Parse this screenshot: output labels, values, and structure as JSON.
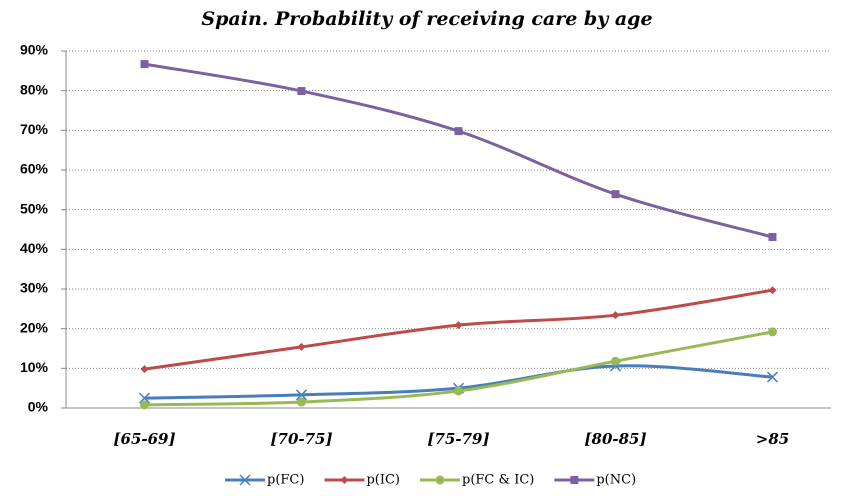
{
  "chart_data": {
    "type": "line",
    "title": "Spain. Probability of receiving care by age",
    "categories": [
      "[65-69]",
      "[70-75]",
      "[75-79]",
      "[80-85]",
      ">85"
    ],
    "series": [
      {
        "name": "p(FC)",
        "color": "#4a7ebb",
        "marker": "x",
        "values": [
          2.5,
          3.3,
          5.0,
          10.6,
          7.8
        ]
      },
      {
        "name": "p(IC)",
        "color": "#be4b48",
        "marker": "diamond",
        "values": [
          9.8,
          15.4,
          20.9,
          23.4,
          29.7
        ]
      },
      {
        "name": "p(FC & IC)",
        "color": "#98b954",
        "marker": "circle",
        "values": [
          0.8,
          1.5,
          4.3,
          11.8,
          19.2
        ]
      },
      {
        "name": "p(NC)",
        "color": "#7d60a0",
        "marker": "square",
        "values": [
          86.7,
          79.9,
          69.8,
          53.9,
          43.1
        ]
      }
    ],
    "ylim": [
      0,
      90
    ],
    "yticks": [
      {
        "value": 0,
        "label": "0%"
      },
      {
        "value": 10,
        "label": "10%"
      },
      {
        "value": 20,
        "label": "20%"
      },
      {
        "value": 30,
        "label": "30%"
      },
      {
        "value": 40,
        "label": "40%"
      },
      {
        "value": 50,
        "label": "50%"
      },
      {
        "value": 60,
        "label": "60%"
      },
      {
        "value": 70,
        "label": "70%"
      },
      {
        "value": 80,
        "label": "80%"
      },
      {
        "value": 90,
        "label": "90%"
      }
    ],
    "grid": true,
    "legend": "bottom"
  }
}
